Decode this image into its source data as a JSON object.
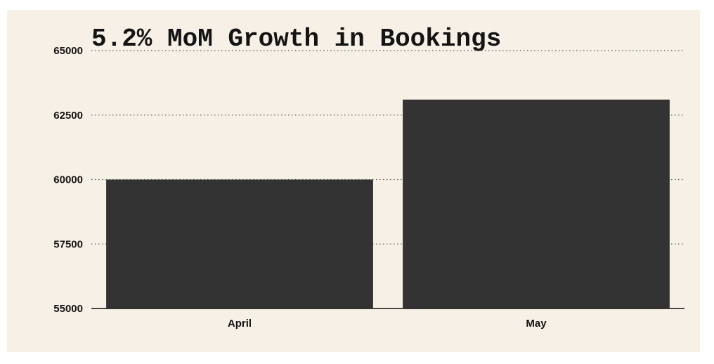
{
  "chart_data": {
    "type": "bar",
    "title": "5.2% MoM Growth in Bookings",
    "categories": [
      "April",
      "May"
    ],
    "values": [
      60000,
      63100
    ],
    "ylim": [
      55000,
      65000
    ],
    "yticks": [
      55000,
      57500,
      60000,
      62500,
      65000
    ],
    "ytick_labels": [
      "55000",
      "57500",
      "60000",
      "62500",
      "65000"
    ],
    "xlabel": "",
    "ylabel": "",
    "grid": "horizontal-dotted",
    "legend": "none",
    "colors": {
      "background": "#f7f0e6",
      "bar": "#333333",
      "grid": "#555555",
      "axis": "#141414",
      "text": "#141414"
    }
  }
}
